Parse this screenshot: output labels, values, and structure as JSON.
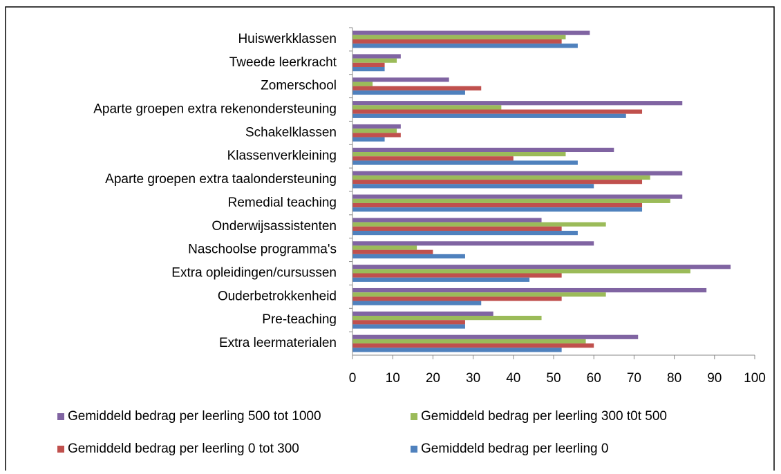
{
  "chart_data": {
    "type": "bar",
    "orientation": "horizontal",
    "categories": [
      "Huiswerkklassen",
      "Tweede leerkracht",
      "Zomerschool",
      "Aparte groepen extra rekenondersteuning",
      "Schakelklassen",
      "Klassenverkleining",
      "Aparte groepen extra taalondersteuning",
      "Remedial teaching",
      "Onderwijsassistenten",
      "Naschoolse programma's",
      "Extra opleidingen/cursussen",
      "Ouderbetrokkenheid",
      "Pre-teaching",
      "Extra leermaterialen"
    ],
    "series": [
      {
        "name": "Gemiddeld bedrag per leerling 500 tot 1000",
        "color": "#8064a2",
        "values": [
          59,
          12,
          24,
          82,
          12,
          65,
          82,
          82,
          47,
          60,
          94,
          88,
          35,
          71
        ]
      },
      {
        "name": "Gemiddeld bedrag per leerling 300 t0t 500",
        "color": "#9bbb59",
        "values": [
          53,
          11,
          5,
          37,
          11,
          53,
          74,
          79,
          63,
          16,
          84,
          63,
          47,
          58
        ]
      },
      {
        "name": "Gemiddeld bedrag per leerling 0 tot 300",
        "color": "#c0504d",
        "values": [
          52,
          8,
          32,
          72,
          12,
          40,
          72,
          72,
          52,
          20,
          52,
          52,
          28,
          60
        ]
      },
      {
        "name": "Gemiddeld bedrag per leerling 0",
        "color": "#4f81bd",
        "values": [
          56,
          8,
          28,
          68,
          8,
          56,
          60,
          72,
          56,
          28,
          44,
          32,
          28,
          52
        ]
      }
    ],
    "xlim": [
      0,
      100
    ],
    "xticks": [
      0,
      10,
      20,
      30,
      40,
      50,
      60,
      70,
      80,
      90,
      100
    ],
    "grid": false,
    "legend": "bottom"
  }
}
